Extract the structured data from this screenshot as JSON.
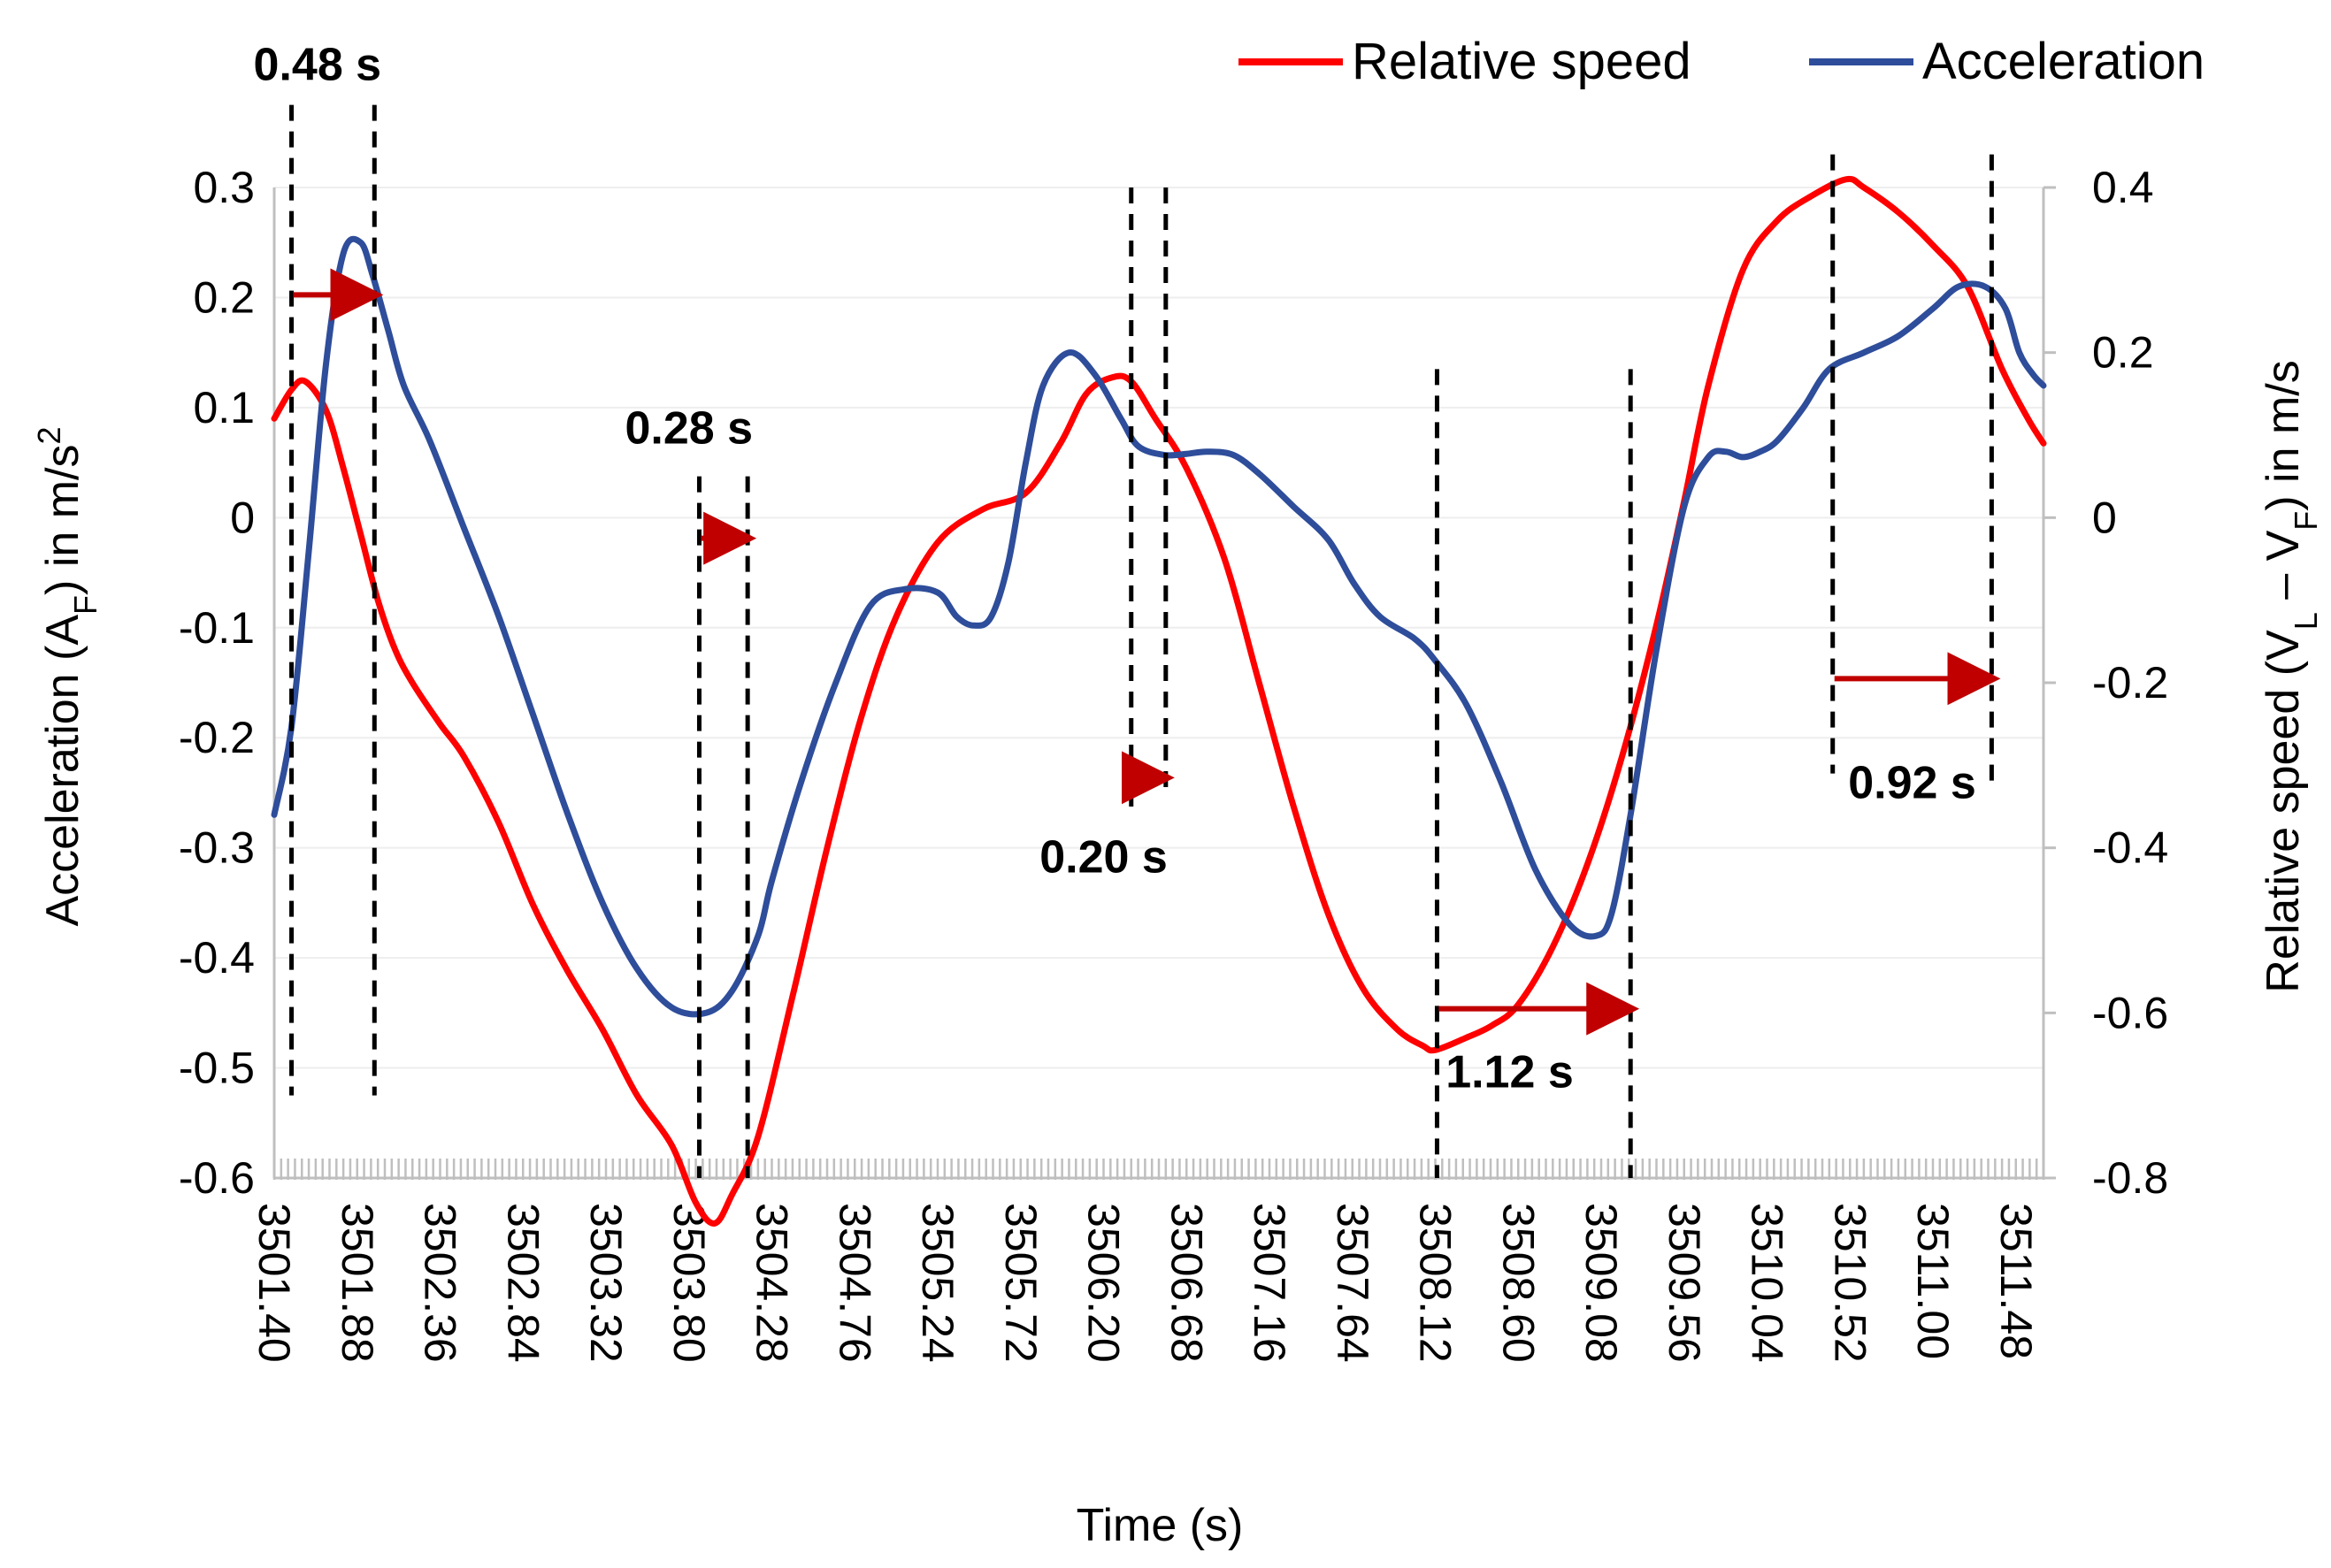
{
  "chart_data": {
    "type": "line",
    "title": "",
    "xlabel": "Time (s)",
    "ylabel_left": {
      "main": "Acceleration (A",
      "sub": "F",
      "tail": ") in m/s",
      "sup": "2"
    },
    "ylabel_right": {
      "main": "Relative speed (V",
      "sub1": "L",
      "mid": " – V",
      "sub2": "F",
      "tail": ") in m/s"
    },
    "xlim": [
      3501.4,
      3511.64
    ],
    "ylim_left": [
      -0.6,
      0.3
    ],
    "ylim_right": [
      -0.8,
      0.4
    ],
    "x_ticks": [
      "3501.40",
      "3501.88",
      "3502.36",
      "3502.84",
      "3503.32",
      "3503.80",
      "3504.28",
      "3504.76",
      "3505.24",
      "3505.72",
      "3506.20",
      "3506.68",
      "3507.16",
      "3507.64",
      "3508.12",
      "3508.60",
      "3509.08",
      "3509.56",
      "3510.04",
      "3510.52",
      "3511.00",
      "3511.48"
    ],
    "y_ticks_left": [
      "0.3",
      "0.2",
      "0.1",
      "0",
      "-0.1",
      "-0.2",
      "-0.3",
      "-0.4",
      "-0.5",
      "-0.6"
    ],
    "y_ticks_right": [
      "0.4",
      "0.2",
      "0",
      "-0.2",
      "-0.4",
      "-0.6",
      "-0.8"
    ],
    "legend_position": "top-right",
    "series": [
      {
        "name": "Relative speed",
        "axis": "right",
        "color": "#ff0000",
        "x": [
          3501.4,
          3501.5,
          3501.58,
          3501.7,
          3501.8,
          3501.9,
          3502.0,
          3502.1,
          3502.2,
          3502.36,
          3502.5,
          3502.7,
          3502.9,
          3503.1,
          3503.3,
          3503.5,
          3503.7,
          3503.84,
          3503.95,
          3504.05,
          3504.2,
          3504.4,
          3504.6,
          3504.8,
          3505.0,
          3505.24,
          3505.5,
          3505.75,
          3505.95,
          3506.1,
          3506.25,
          3506.36,
          3506.5,
          3506.68,
          3506.9,
          3507.1,
          3507.3,
          3507.5,
          3507.7,
          3507.9,
          3508.05,
          3508.12,
          3508.3,
          3508.45,
          3508.6,
          3508.8,
          3509.0,
          3509.2,
          3509.4,
          3509.56,
          3509.7,
          3509.9,
          3510.1,
          3510.3,
          3510.5,
          3510.6,
          3510.8,
          3511.0,
          3511.2,
          3511.4,
          3511.55,
          3511.64
        ],
        "y": [
          0.12,
          0.155,
          0.165,
          0.13,
          0.06,
          -0.02,
          -0.1,
          -0.16,
          -0.2,
          -0.25,
          -0.29,
          -0.37,
          -0.47,
          -0.55,
          -0.62,
          -0.7,
          -0.76,
          -0.83,
          -0.855,
          -0.82,
          -0.75,
          -0.58,
          -0.4,
          -0.24,
          -0.12,
          -0.03,
          0.01,
          0.03,
          0.09,
          0.15,
          0.17,
          0.165,
          0.12,
          0.06,
          -0.05,
          -0.2,
          -0.35,
          -0.48,
          -0.57,
          -0.62,
          -0.64,
          -0.645,
          -0.63,
          -0.615,
          -0.59,
          -0.52,
          -0.42,
          -0.29,
          -0.13,
          0.02,
          0.16,
          0.3,
          0.36,
          0.39,
          0.41,
          0.4,
          0.37,
          0.33,
          0.28,
          0.18,
          0.12,
          0.09
        ]
      },
      {
        "name": "Acceleration",
        "axis": "left",
        "color": "#2e4d9a",
        "x": [
          3501.4,
          3501.5,
          3501.6,
          3501.7,
          3501.8,
          3501.9,
          3501.97,
          3502.06,
          3502.15,
          3502.3,
          3502.5,
          3502.7,
          3502.9,
          3503.1,
          3503.3,
          3503.5,
          3503.7,
          3503.9,
          3504.05,
          3504.2,
          3504.28,
          3504.45,
          3504.65,
          3504.85,
          3505.05,
          3505.24,
          3505.35,
          3505.45,
          3505.55,
          3505.65,
          3505.75,
          3505.85,
          3506.0,
          3506.15,
          3506.3,
          3506.4,
          3506.55,
          3506.68,
          3506.8,
          3506.95,
          3507.1,
          3507.3,
          3507.5,
          3507.65,
          3507.8,
          3508.0,
          3508.12,
          3508.3,
          3508.5,
          3508.7,
          3508.9,
          3509.05,
          3509.14,
          3509.25,
          3509.4,
          3509.56,
          3509.7,
          3509.8,
          3509.9,
          3510.0,
          3510.1,
          3510.25,
          3510.4,
          3510.6,
          3510.8,
          3511.0,
          3511.15,
          3511.3,
          3511.42,
          3511.5,
          3511.58,
          3511.64
        ],
        "y": [
          -0.27,
          -0.19,
          -0.03,
          0.14,
          0.24,
          0.25,
          0.22,
          0.17,
          0.12,
          0.07,
          -0.01,
          -0.09,
          -0.18,
          -0.27,
          -0.35,
          -0.41,
          -0.445,
          -0.45,
          -0.43,
          -0.38,
          -0.33,
          -0.24,
          -0.15,
          -0.08,
          -0.065,
          -0.068,
          -0.09,
          -0.098,
          -0.09,
          -0.04,
          0.05,
          0.12,
          0.15,
          0.13,
          0.09,
          0.065,
          0.057,
          0.058,
          0.06,
          0.057,
          0.04,
          0.01,
          -0.02,
          -0.06,
          -0.09,
          -0.11,
          -0.13,
          -0.17,
          -0.24,
          -0.32,
          -0.37,
          -0.38,
          -0.36,
          -0.27,
          -0.12,
          0.01,
          0.055,
          0.06,
          0.055,
          0.06,
          0.07,
          0.1,
          0.135,
          0.15,
          0.165,
          0.19,
          0.21,
          0.21,
          0.19,
          0.15,
          0.13,
          0.12
        ]
      }
    ],
    "annotations": [
      {
        "label": "0.48 s",
        "x1": 3501.5,
        "x2": 3501.98,
        "arrow_y_right": 0.27,
        "label_x": 3501.65,
        "label_y_right": 0.53,
        "line_top_right": 0.5,
        "line1_bottom_right": -0.7,
        "line2_bottom_right": -0.7
      },
      {
        "label": "0.28 s",
        "x1": 3503.86,
        "x2": 3504.14,
        "arrow_y_right": -0.025,
        "label_x": 3503.8,
        "label_y_right": 0.09,
        "line_top_right": 0.05,
        "line1_bottom_right": -0.8,
        "line2_bottom_right": -0.8
      },
      {
        "label": "0.20 s",
        "x1": 3506.36,
        "x2": 3506.56,
        "arrow_y_right": -0.315,
        "label_x": 3506.2,
        "label_y_right": -0.43,
        "line_top_right": 0.4,
        "line1_bottom_right": -0.35,
        "line2_bottom_right": -0.33
      },
      {
        "label": "1.12 s",
        "x1": 3508.13,
        "x2": 3509.25,
        "arrow_y_right": -0.595,
        "label_x": 3508.55,
        "label_y_right": -0.69,
        "line_top_right": 0.18,
        "line1_bottom_right": -0.8,
        "line2_bottom_right": -0.8
      },
      {
        "label": "0.92 s",
        "x1": 3510.42,
        "x2": 3511.34,
        "arrow_y_right": -0.195,
        "label_x": 3510.88,
        "label_y_right": -0.34,
        "line_top_right": 0.44,
        "line1_bottom_right": -0.31,
        "line2_bottom_right": -0.32
      }
    ]
  },
  "colors": {
    "relative_speed": "#ff0000",
    "acceleration": "#2e4d9a",
    "arrow": "#c00000",
    "axis": "#bfbfbf",
    "grid": "#eeeeee"
  }
}
